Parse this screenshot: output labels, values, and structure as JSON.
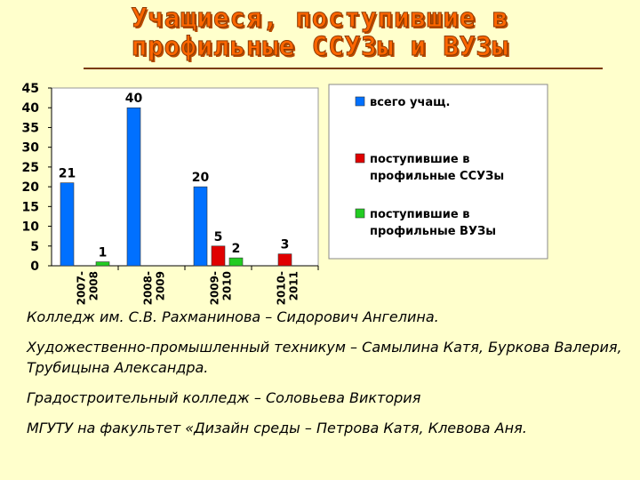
{
  "title": {
    "line1": "Учащиеся, поступившие в",
    "line2": "профильные ССУЗы и ВУЗы"
  },
  "chart_data": {
    "type": "bar",
    "categories": [
      "2007-2008",
      "2008-2009",
      "2009-2010",
      "2010-2011"
    ],
    "series": [
      {
        "name": "всего учащ.",
        "color": "#0070FF",
        "values": [
          21,
          40,
          20,
          null
        ]
      },
      {
        "name": "поступившие в профильные ССУЗы",
        "color": "#E00000",
        "values": [
          null,
          null,
          5,
          3
        ]
      },
      {
        "name": "поступившие в профильные ВУЗы",
        "color": "#22CC22",
        "values": [
          1,
          null,
          2,
          null
        ]
      }
    ],
    "yticks": [
      0,
      5,
      10,
      15,
      20,
      25,
      30,
      35,
      40,
      45
    ],
    "ylim": [
      0,
      45
    ],
    "legend_position": "right",
    "grid": false
  },
  "notes": [
    "Колледж им. С.В. Рахманинова – Сидорович Ангелина.",
    "Художественно-промышленный техникум – Самылина Катя, Буркова Валерия, Трубицына Александра.",
    "Градостроительный колледж – Соловьева Виктория",
    "МГУТУ на факультет «Дизайн среды – Петрова Катя, Клевова Аня."
  ]
}
